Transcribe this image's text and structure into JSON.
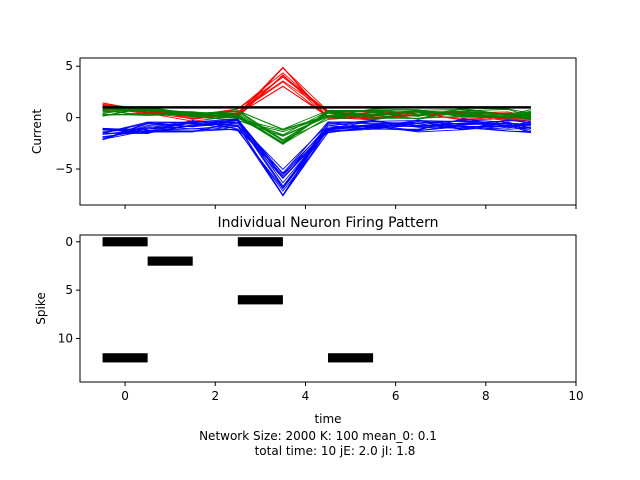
{
  "chart_data": [
    {
      "type": "line",
      "ylabel": "Current",
      "xlim": [
        -1,
        10
      ],
      "ylim": [
        -8.5,
        5.8
      ],
      "xticks": [
        0,
        2,
        4,
        6,
        8,
        10
      ],
      "yticks": [
        5,
        0,
        -5
      ],
      "ytick_labels": [
        "5",
        "0",
        "−5"
      ],
      "x": [
        -0.5,
        0.5,
        1.5,
        2.5,
        3.5,
        4.5,
        5.5,
        6.5,
        7.5,
        8.5,
        9
      ],
      "groups": [
        {
          "color": "#ff0000",
          "line_count": 12,
          "mean": [
            1.1,
            0.6,
            0.1,
            0.4,
            4.0,
            0.3,
            0.1,
            0.3,
            0.2,
            0.1,
            0.0
          ],
          "spread": 0.45
        },
        {
          "color": "#008000",
          "line_count": 15,
          "mean": [
            0.5,
            0.6,
            0.3,
            0.2,
            -1.6,
            0.2,
            0.4,
            0.3,
            0.5,
            0.4,
            0.3
          ],
          "spread": 0.5
        },
        {
          "color": "#0000ff",
          "line_count": 18,
          "mean": [
            -1.6,
            -1.0,
            -0.8,
            -0.7,
            -6.3,
            -1.0,
            -0.6,
            -0.8,
            -0.7,
            -0.8,
            -0.9
          ],
          "spread": 0.6
        },
        {
          "color": "#000000",
          "line_count": 1,
          "mean": [
            1.0,
            1.0,
            1.0,
            1.0,
            1.0,
            1.0,
            1.0,
            1.0,
            1.0,
            1.0,
            1.0
          ],
          "spread": 0,
          "bold": true
        }
      ]
    },
    {
      "type": "raster",
      "title": "Individual Neuron Firing Pattern",
      "xlabel": "time",
      "ylabel": "Spike",
      "xlim": [
        -1,
        10
      ],
      "ylim": [
        14.5,
        -0.7
      ],
      "xticks": [
        0,
        2,
        4,
        6,
        8,
        10
      ],
      "yticks": [
        0,
        5,
        10
      ],
      "spikes": [
        {
          "neuron": 0,
          "time": 0
        },
        {
          "neuron": 0,
          "time": 3
        },
        {
          "neuron": 2,
          "time": 1
        },
        {
          "neuron": 6,
          "time": 3
        },
        {
          "neuron": 12,
          "time": 0
        },
        {
          "neuron": 12,
          "time": 5
        }
      ],
      "bar_width": 1.0,
      "color": "#000000"
    }
  ],
  "footer": {
    "line1": "Network Size: 2000  K: 100  mean_0: 0.1",
    "line2": "total time: 10   jE: 2.0   jI: 1.8"
  }
}
